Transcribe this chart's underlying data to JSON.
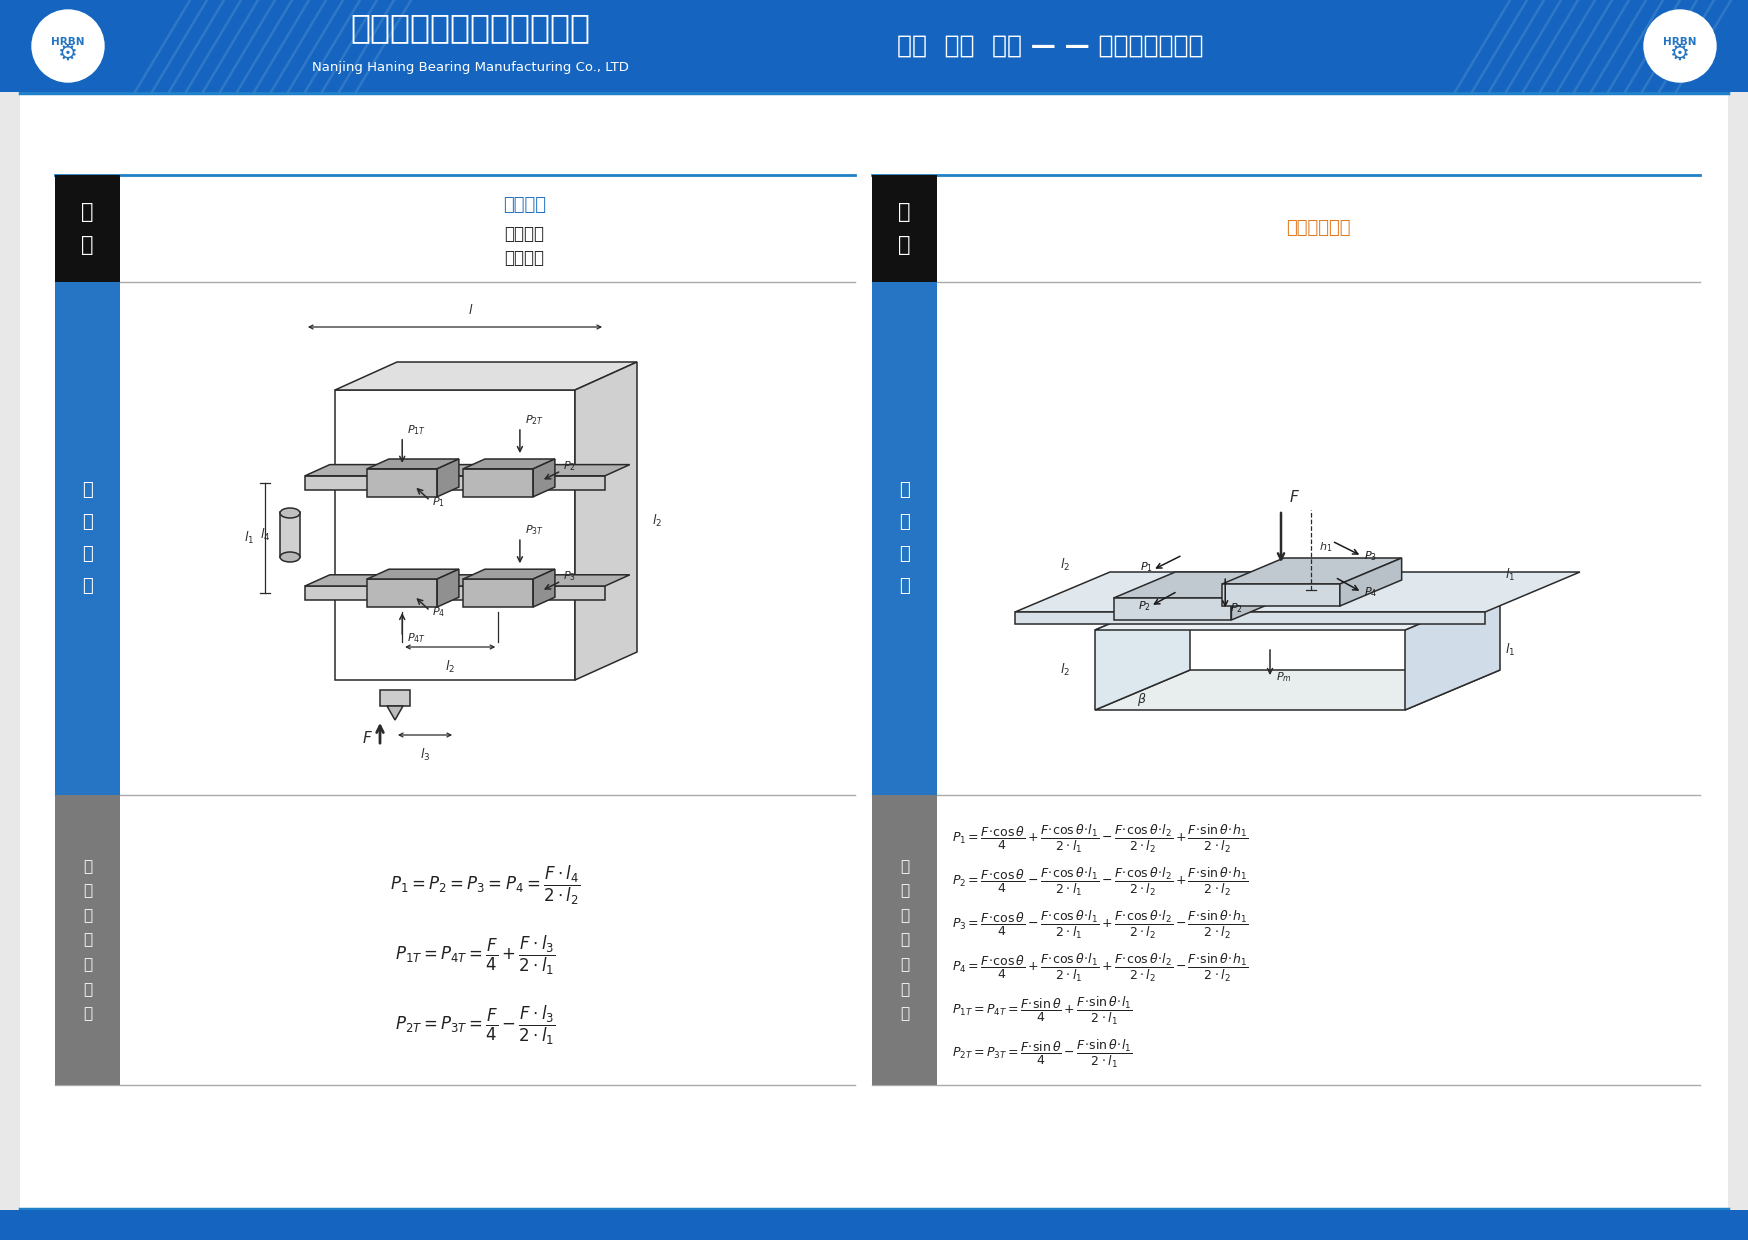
{
  "header_bg": "#1565c0",
  "header_text_cn": "南京哈宁轴承制造有限公司",
  "header_text_en": "Nanjing Haning Bearing Manufacturing Co., LTD",
  "header_slogan": "诚信  创新  担当 — — 世界因我们而动",
  "section1_title": "壁挂使用",
  "section1_sub1": "等速运动",
  "section1_sub2": "或静止时",
  "section2_title": "侧面倾斜使用",
  "label_xingshi": "型\n式",
  "label_use": "使\n用\n配\n置",
  "label_calc": "滑\n块\n负\n荷\n计\n算\n式",
  "black_bar_color": "#111111",
  "blue_bar_color": "#2575c4",
  "gray_bar_color": "#7a7a7a",
  "panel_outline": "#aaaaaa",
  "blue_line": "#2080c8",
  "section1_title_color": "#2575c4",
  "section2_title_color": "#e07820",
  "text_color": "#222222",
  "bg_white": "#ffffff",
  "bg_light": "#f5f5f5"
}
